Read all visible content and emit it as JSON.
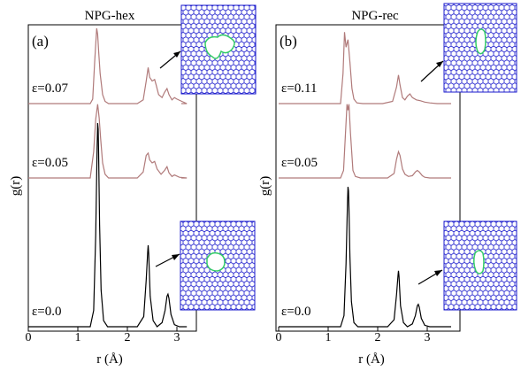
{
  "chart_data": [
    {
      "type": "line",
      "panel_label": "(a)",
      "title": "NPG-hex",
      "xlabel": "r (Å)",
      "ylabel": "g(r)",
      "xlim": [
        0,
        3.45
      ],
      "xticks": [
        "0",
        "1",
        "2",
        "3"
      ],
      "series": [
        {
          "name": "ε=0.07",
          "color": "#b07a7a",
          "x": [
            0.0,
            1.25,
            1.3,
            1.34,
            1.38,
            1.4,
            1.42,
            1.45,
            1.5,
            1.55,
            1.62,
            1.8,
            2.0,
            2.2,
            2.32,
            2.38,
            2.42,
            2.45,
            2.5,
            2.55,
            2.58,
            2.63,
            2.7,
            2.75,
            2.8,
            2.84,
            2.9,
            2.95,
            3.0,
            3.1,
            3.2
          ],
          "y": [
            0.0,
            0.0,
            0.06,
            0.55,
            1.0,
            0.92,
            0.7,
            0.4,
            0.12,
            0.03,
            0.0,
            0.0,
            0.0,
            0.0,
            0.05,
            0.3,
            0.48,
            0.35,
            0.3,
            0.32,
            0.25,
            0.12,
            0.08,
            0.15,
            0.2,
            0.12,
            0.05,
            0.08,
            0.06,
            0.03,
            0.0
          ]
        },
        {
          "name": "ε=0.05",
          "color": "#b07a7a",
          "x": [
            0.0,
            1.25,
            1.32,
            1.36,
            1.4,
            1.43,
            1.46,
            1.5,
            1.55,
            1.62,
            1.8,
            2.0,
            2.2,
            2.32,
            2.38,
            2.42,
            2.45,
            2.5,
            2.55,
            2.6,
            2.68,
            2.75,
            2.8,
            2.84,
            2.9,
            2.95,
            3.05,
            3.2
          ],
          "y": [
            0.0,
            0.0,
            0.35,
            0.78,
            0.98,
            0.8,
            0.52,
            0.2,
            0.05,
            0.0,
            0.0,
            0.0,
            0.0,
            0.08,
            0.3,
            0.33,
            0.24,
            0.2,
            0.22,
            0.12,
            0.05,
            0.1,
            0.15,
            0.07,
            0.02,
            0.04,
            0.01,
            0.0
          ]
        },
        {
          "name": "ε=0.0",
          "color": "#000000",
          "x": [
            0.0,
            1.25,
            1.32,
            1.36,
            1.39,
            1.4,
            1.41,
            1.42,
            1.44,
            1.47,
            1.52,
            1.6,
            1.8,
            2.0,
            2.2,
            2.33,
            2.38,
            2.41,
            2.42,
            2.43,
            2.46,
            2.52,
            2.6,
            2.7,
            2.76,
            2.8,
            2.82,
            2.84,
            2.88,
            2.95,
            3.05,
            3.2
          ],
          "y": [
            0.0,
            0.0,
            0.08,
            0.45,
            0.88,
            1.0,
            0.97,
            0.85,
            0.5,
            0.18,
            0.03,
            0.0,
            0.0,
            0.0,
            0.0,
            0.05,
            0.23,
            0.37,
            0.4,
            0.36,
            0.15,
            0.03,
            0.0,
            0.02,
            0.08,
            0.15,
            0.16,
            0.14,
            0.06,
            0.01,
            0.0,
            0.0
          ]
        }
      ]
    },
    {
      "type": "line",
      "panel_label": "(b)",
      "title": "NPG-rec",
      "xlabel": "r (Å)",
      "ylabel": "g(r)",
      "xlim": [
        0,
        3.45
      ],
      "xticks": [
        "0",
        "1",
        "2",
        "3"
      ],
      "series": [
        {
          "name": "ε=0.11",
          "color": "#b07a7a",
          "x": [
            0.0,
            1.25,
            1.3,
            1.33,
            1.36,
            1.4,
            1.44,
            1.48,
            1.52,
            1.58,
            1.7,
            1.9,
            2.1,
            2.3,
            2.38,
            2.42,
            2.45,
            2.5,
            2.55,
            2.6,
            2.65,
            2.7,
            2.78,
            2.85,
            2.95,
            3.05,
            3.2
          ],
          "y": [
            0.0,
            0.0,
            0.4,
            0.95,
            0.75,
            0.85,
            0.55,
            0.2,
            0.06,
            0.01,
            0.0,
            0.0,
            0.0,
            0.03,
            0.22,
            0.38,
            0.25,
            0.08,
            0.05,
            0.1,
            0.13,
            0.08,
            0.05,
            0.04,
            0.02,
            0.01,
            0.0
          ]
        },
        {
          "name": "ε=0.05",
          "color": "#b07a7a",
          "x": [
            0.0,
            1.25,
            1.31,
            1.35,
            1.38,
            1.4,
            1.42,
            1.45,
            1.5,
            1.55,
            1.65,
            1.8,
            2.0,
            2.2,
            2.33,
            2.38,
            2.42,
            2.45,
            2.5,
            2.55,
            2.62,
            2.7,
            2.76,
            2.8,
            2.84,
            2.9,
            2.95,
            3.05,
            3.2
          ],
          "y": [
            0.0,
            0.0,
            0.1,
            0.6,
            0.98,
            0.9,
            0.98,
            0.6,
            0.1,
            0.02,
            0.0,
            0.0,
            0.0,
            0.0,
            0.06,
            0.25,
            0.35,
            0.3,
            0.12,
            0.05,
            0.02,
            0.03,
            0.08,
            0.1,
            0.08,
            0.03,
            0.01,
            0.0,
            0.0
          ]
        },
        {
          "name": "ε=0.0",
          "color": "#000000",
          "x": [
            0.0,
            1.25,
            1.32,
            1.36,
            1.39,
            1.4,
            1.41,
            1.42,
            1.44,
            1.47,
            1.52,
            1.6,
            1.8,
            2.0,
            2.2,
            2.33,
            2.38,
            2.41,
            2.42,
            2.43,
            2.46,
            2.52,
            2.6,
            2.7,
            2.76,
            2.8,
            2.82,
            2.84,
            2.88,
            2.95,
            3.05,
            3.2
          ],
          "y": [
            0.0,
            0.0,
            0.08,
            0.45,
            0.88,
            1.0,
            0.97,
            0.85,
            0.5,
            0.18,
            0.03,
            0.0,
            0.0,
            0.0,
            0.0,
            0.05,
            0.23,
            0.37,
            0.4,
            0.36,
            0.15,
            0.03,
            0.0,
            0.02,
            0.08,
            0.15,
            0.16,
            0.14,
            0.06,
            0.01,
            0.0,
            0.0
          ]
        }
      ]
    }
  ]
}
